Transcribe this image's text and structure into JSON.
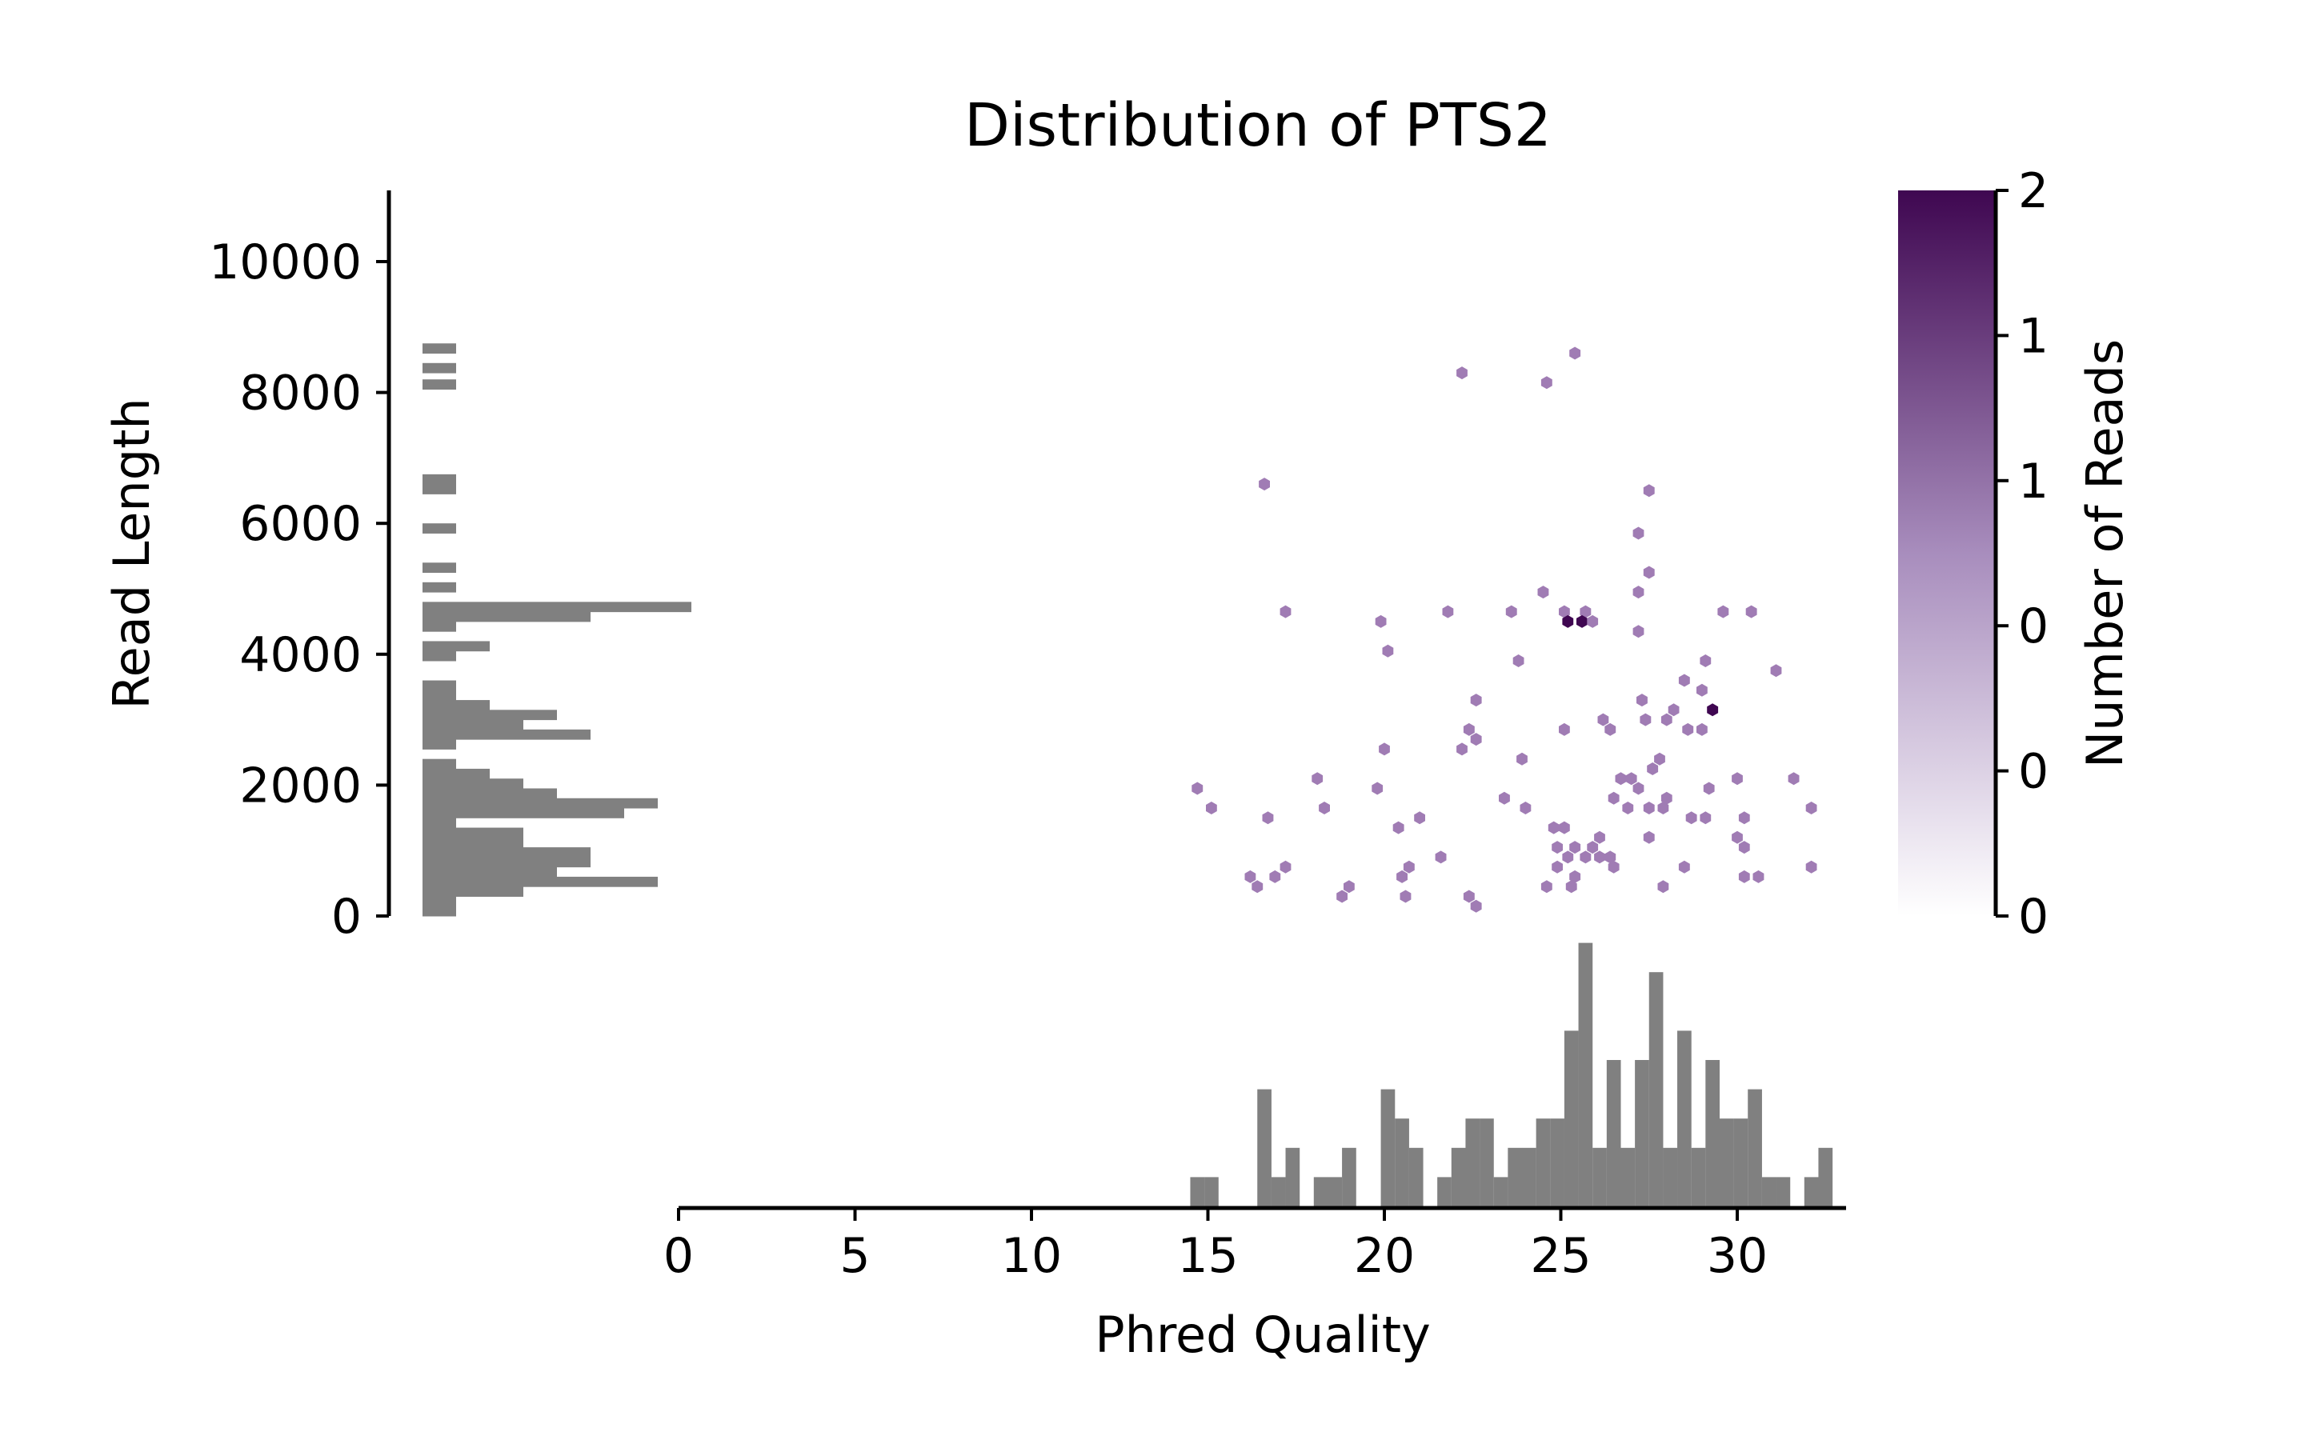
{
  "chart_data": {
    "type": "hexbin",
    "title": "Distribution of PTS2",
    "xlabel": "Phred Quality",
    "ylabel": "Read Length",
    "colorbar_label": "Number of Reads",
    "xlim": [
      0,
      33
    ],
    "ylim": [
      0,
      11000
    ],
    "x_ticks": [
      0,
      5,
      10,
      15,
      20,
      25,
      30
    ],
    "y_ticks": [
      0,
      2000,
      4000,
      6000,
      8000,
      10000
    ],
    "colorbar_ticks": [
      "0",
      "0",
      "0",
      "1",
      "1",
      "2"
    ],
    "colorbar_range": [
      0,
      2
    ],
    "colors": {
      "hex_low": "#a07cb4",
      "hex_high": "#3f0751",
      "histogram": "#808080",
      "colorbar_top": "#3f0751"
    },
    "points": [
      {
        "x": 25.4,
        "y": 8600,
        "n": 1
      },
      {
        "x": 22.2,
        "y": 8300,
        "n": 1
      },
      {
        "x": 24.6,
        "y": 8150,
        "n": 1
      },
      {
        "x": 16.6,
        "y": 6600,
        "n": 1
      },
      {
        "x": 27.5,
        "y": 6500,
        "n": 1
      },
      {
        "x": 27.2,
        "y": 5850,
        "n": 1
      },
      {
        "x": 27.5,
        "y": 5250,
        "n": 1
      },
      {
        "x": 24.5,
        "y": 4950,
        "n": 1
      },
      {
        "x": 27.2,
        "y": 4950,
        "n": 1
      },
      {
        "x": 17.2,
        "y": 4650,
        "n": 1
      },
      {
        "x": 21.8,
        "y": 4650,
        "n": 1
      },
      {
        "x": 23.6,
        "y": 4650,
        "n": 1
      },
      {
        "x": 25.1,
        "y": 4650,
        "n": 1
      },
      {
        "x": 25.7,
        "y": 4650,
        "n": 1
      },
      {
        "x": 29.6,
        "y": 4650,
        "n": 1
      },
      {
        "x": 30.4,
        "y": 4650,
        "n": 1
      },
      {
        "x": 19.9,
        "y": 4500,
        "n": 1
      },
      {
        "x": 25.2,
        "y": 4500,
        "n": 2
      },
      {
        "x": 25.6,
        "y": 4500,
        "n": 2
      },
      {
        "x": 25.9,
        "y": 4500,
        "n": 1
      },
      {
        "x": 27.2,
        "y": 4350,
        "n": 1
      },
      {
        "x": 20.1,
        "y": 4050,
        "n": 1
      },
      {
        "x": 23.8,
        "y": 3900,
        "n": 1
      },
      {
        "x": 29.1,
        "y": 3900,
        "n": 1
      },
      {
        "x": 31.1,
        "y": 3750,
        "n": 1
      },
      {
        "x": 28.5,
        "y": 3600,
        "n": 1
      },
      {
        "x": 29.0,
        "y": 3450,
        "n": 1
      },
      {
        "x": 22.6,
        "y": 3300,
        "n": 1
      },
      {
        "x": 27.3,
        "y": 3300,
        "n": 1
      },
      {
        "x": 28.2,
        "y": 3150,
        "n": 1
      },
      {
        "x": 29.3,
        "y": 3150,
        "n": 2
      },
      {
        "x": 26.2,
        "y": 3000,
        "n": 1
      },
      {
        "x": 27.4,
        "y": 3000,
        "n": 1
      },
      {
        "x": 28.0,
        "y": 3000,
        "n": 1
      },
      {
        "x": 22.4,
        "y": 2850,
        "n": 1
      },
      {
        "x": 25.1,
        "y": 2850,
        "n": 1
      },
      {
        "x": 26.4,
        "y": 2850,
        "n": 1
      },
      {
        "x": 28.6,
        "y": 2850,
        "n": 1
      },
      {
        "x": 29.0,
        "y": 2850,
        "n": 1
      },
      {
        "x": 22.6,
        "y": 2700,
        "n": 1
      },
      {
        "x": 20.0,
        "y": 2550,
        "n": 1
      },
      {
        "x": 22.2,
        "y": 2550,
        "n": 1
      },
      {
        "x": 23.9,
        "y": 2400,
        "n": 1
      },
      {
        "x": 27.8,
        "y": 2400,
        "n": 1
      },
      {
        "x": 27.6,
        "y": 2250,
        "n": 1
      },
      {
        "x": 18.1,
        "y": 2100,
        "n": 1
      },
      {
        "x": 26.7,
        "y": 2100,
        "n": 1
      },
      {
        "x": 27.0,
        "y": 2100,
        "n": 1
      },
      {
        "x": 30.0,
        "y": 2100,
        "n": 1
      },
      {
        "x": 31.6,
        "y": 2100,
        "n": 1
      },
      {
        "x": 14.7,
        "y": 1950,
        "n": 1
      },
      {
        "x": 19.8,
        "y": 1950,
        "n": 1
      },
      {
        "x": 27.2,
        "y": 1950,
        "n": 1
      },
      {
        "x": 29.2,
        "y": 1950,
        "n": 1
      },
      {
        "x": 23.4,
        "y": 1800,
        "n": 1
      },
      {
        "x": 26.5,
        "y": 1800,
        "n": 1
      },
      {
        "x": 28.0,
        "y": 1800,
        "n": 1
      },
      {
        "x": 15.1,
        "y": 1650,
        "n": 1
      },
      {
        "x": 18.3,
        "y": 1650,
        "n": 1
      },
      {
        "x": 24.0,
        "y": 1650,
        "n": 1
      },
      {
        "x": 26.9,
        "y": 1650,
        "n": 1
      },
      {
        "x": 27.5,
        "y": 1650,
        "n": 1
      },
      {
        "x": 27.9,
        "y": 1650,
        "n": 1
      },
      {
        "x": 32.1,
        "y": 1650,
        "n": 1
      },
      {
        "x": 16.7,
        "y": 1500,
        "n": 1
      },
      {
        "x": 21.0,
        "y": 1500,
        "n": 1
      },
      {
        "x": 28.7,
        "y": 1500,
        "n": 1
      },
      {
        "x": 29.1,
        "y": 1500,
        "n": 1
      },
      {
        "x": 30.2,
        "y": 1500,
        "n": 1
      },
      {
        "x": 20.4,
        "y": 1350,
        "n": 1
      },
      {
        "x": 24.8,
        "y": 1350,
        "n": 1
      },
      {
        "x": 25.1,
        "y": 1350,
        "n": 1
      },
      {
        "x": 26.1,
        "y": 1200,
        "n": 1
      },
      {
        "x": 27.5,
        "y": 1200,
        "n": 1
      },
      {
        "x": 30.0,
        "y": 1200,
        "n": 1
      },
      {
        "x": 24.9,
        "y": 1050,
        "n": 1
      },
      {
        "x": 25.4,
        "y": 1050,
        "n": 1
      },
      {
        "x": 25.9,
        "y": 1050,
        "n": 1
      },
      {
        "x": 30.2,
        "y": 1050,
        "n": 1
      },
      {
        "x": 21.6,
        "y": 900,
        "n": 1
      },
      {
        "x": 25.2,
        "y": 900,
        "n": 1
      },
      {
        "x": 25.7,
        "y": 900,
        "n": 1
      },
      {
        "x": 26.1,
        "y": 900,
        "n": 1
      },
      {
        "x": 26.4,
        "y": 900,
        "n": 1
      },
      {
        "x": 17.2,
        "y": 750,
        "n": 1
      },
      {
        "x": 20.7,
        "y": 750,
        "n": 1
      },
      {
        "x": 24.9,
        "y": 750,
        "n": 1
      },
      {
        "x": 26.5,
        "y": 750,
        "n": 1
      },
      {
        "x": 28.5,
        "y": 750,
        "n": 1
      },
      {
        "x": 32.1,
        "y": 750,
        "n": 1
      },
      {
        "x": 16.2,
        "y": 600,
        "n": 1
      },
      {
        "x": 16.9,
        "y": 600,
        "n": 1
      },
      {
        "x": 20.5,
        "y": 600,
        "n": 1
      },
      {
        "x": 25.4,
        "y": 600,
        "n": 1
      },
      {
        "x": 30.2,
        "y": 600,
        "n": 1
      },
      {
        "x": 30.6,
        "y": 600,
        "n": 1
      },
      {
        "x": 16.4,
        "y": 450,
        "n": 1
      },
      {
        "x": 19.0,
        "y": 450,
        "n": 1
      },
      {
        "x": 24.6,
        "y": 450,
        "n": 1
      },
      {
        "x": 25.3,
        "y": 450,
        "n": 1
      },
      {
        "x": 27.9,
        "y": 450,
        "n": 1
      },
      {
        "x": 18.8,
        "y": 300,
        "n": 1
      },
      {
        "x": 20.6,
        "y": 300,
        "n": 1
      },
      {
        "x": 22.4,
        "y": 300,
        "n": 1
      },
      {
        "x": 22.6,
        "y": 150,
        "n": 1
      }
    ],
    "x_histogram": {
      "bin_width": 0.39,
      "bins": [
        {
          "x": 14.5,
          "count": 1
        },
        {
          "x": 14.9,
          "count": 1
        },
        {
          "x": 16.4,
          "count": 4
        },
        {
          "x": 16.8,
          "count": 1
        },
        {
          "x": 17.2,
          "count": 2
        },
        {
          "x": 18.0,
          "count": 1
        },
        {
          "x": 18.4,
          "count": 1
        },
        {
          "x": 18.8,
          "count": 2
        },
        {
          "x": 19.9,
          "count": 4
        },
        {
          "x": 20.3,
          "count": 3
        },
        {
          "x": 20.7,
          "count": 2
        },
        {
          "x": 21.5,
          "count": 1
        },
        {
          "x": 21.9,
          "count": 2
        },
        {
          "x": 22.3,
          "count": 3
        },
        {
          "x": 22.7,
          "count": 3
        },
        {
          "x": 23.1,
          "count": 1
        },
        {
          "x": 23.5,
          "count": 2
        },
        {
          "x": 23.9,
          "count": 2
        },
        {
          "x": 24.3,
          "count": 3
        },
        {
          "x": 24.7,
          "count": 3
        },
        {
          "x": 25.1,
          "count": 6
        },
        {
          "x": 25.5,
          "count": 9
        },
        {
          "x": 25.9,
          "count": 2
        },
        {
          "x": 26.3,
          "count": 5
        },
        {
          "x": 26.7,
          "count": 2
        },
        {
          "x": 27.1,
          "count": 5
        },
        {
          "x": 27.5,
          "count": 8
        },
        {
          "x": 27.9,
          "count": 2
        },
        {
          "x": 28.3,
          "count": 6
        },
        {
          "x": 28.7,
          "count": 2
        },
        {
          "x": 29.1,
          "count": 5
        },
        {
          "x": 29.5,
          "count": 3
        },
        {
          "x": 29.9,
          "count": 3
        },
        {
          "x": 30.3,
          "count": 4
        },
        {
          "x": 30.7,
          "count": 1
        },
        {
          "x": 31.1,
          "count": 1
        },
        {
          "x": 31.5,
          "count": 0
        },
        {
          "x": 31.9,
          "count": 1
        },
        {
          "x": 32.3,
          "count": 2
        }
      ]
    },
    "y_histogram": {
      "bin_height": 150,
      "bins": [
        {
          "y": 0,
          "count": 1
        },
        {
          "y": 150,
          "count": 1
        },
        {
          "y": 300,
          "count": 3
        },
        {
          "y": 450,
          "count": 7
        },
        {
          "y": 600,
          "count": 4
        },
        {
          "y": 750,
          "count": 5
        },
        {
          "y": 900,
          "count": 5
        },
        {
          "y": 1050,
          "count": 3
        },
        {
          "y": 1200,
          "count": 3
        },
        {
          "y": 1350,
          "count": 1
        },
        {
          "y": 1500,
          "count": 6
        },
        {
          "y": 1650,
          "count": 7
        },
        {
          "y": 1800,
          "count": 4
        },
        {
          "y": 1950,
          "count": 3
        },
        {
          "y": 2100,
          "count": 2
        },
        {
          "y": 2250,
          "count": 1
        },
        {
          "y": 2550,
          "count": 1
        },
        {
          "y": 2700,
          "count": 5
        },
        {
          "y": 2850,
          "count": 3
        },
        {
          "y": 3000,
          "count": 4
        },
        {
          "y": 3150,
          "count": 2
        },
        {
          "y": 3300,
          "count": 1
        },
        {
          "y": 3450,
          "count": 1
        },
        {
          "y": 3900,
          "count": 1
        },
        {
          "y": 4050,
          "count": 2
        },
        {
          "y": 4350,
          "count": 1
        },
        {
          "y": 4500,
          "count": 5
        },
        {
          "y": 4650,
          "count": 8
        },
        {
          "y": 4950,
          "count": 1
        },
        {
          "y": 5250,
          "count": 1
        },
        {
          "y": 5850,
          "count": 1
        },
        {
          "y": 6450,
          "count": 1
        },
        {
          "y": 6600,
          "count": 1
        },
        {
          "y": 8050,
          "count": 1
        },
        {
          "y": 8300,
          "count": 1
        },
        {
          "y": 8600,
          "count": 1
        }
      ]
    }
  }
}
